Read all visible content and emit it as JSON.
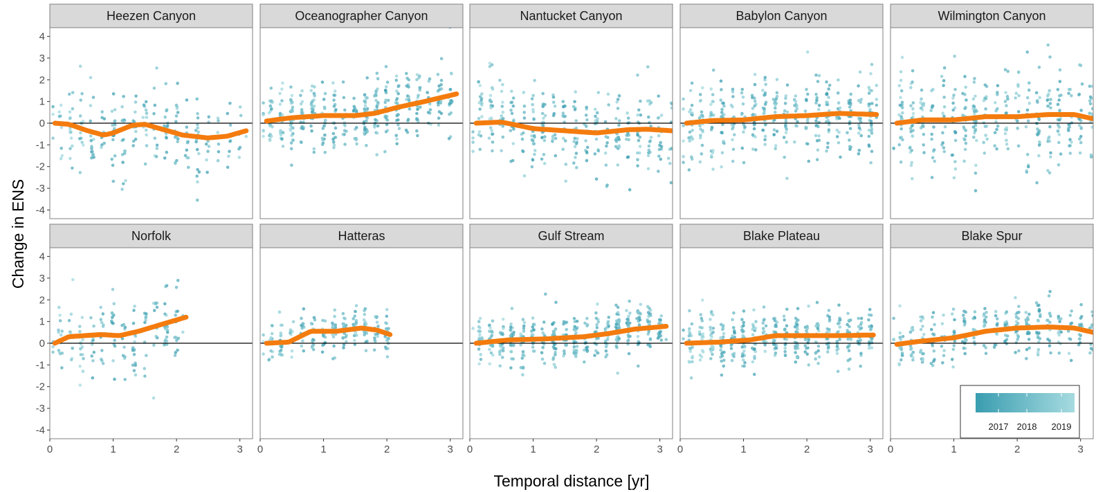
{
  "chart_data": {
    "type": "scatter",
    "layout": "faceted-2x5",
    "xlabel": "Temporal distance [yr]",
    "ylabel": "Change in ENS",
    "xlim": [
      0,
      3.2
    ],
    "ylim": [
      -4.4,
      4.4
    ],
    "x_ticks": [
      0,
      1,
      2,
      3
    ],
    "y_ticks": [
      -4,
      -3,
      -2,
      -1,
      0,
      1,
      2,
      3,
      4
    ],
    "y_tick_labels": [
      "-4",
      "-3",
      "-2",
      "-1",
      "0",
      "1",
      "2",
      "3",
      "4"
    ],
    "reference_line_y": 0,
    "grid": false,
    "colors": {
      "point_dark": "#3a9db0",
      "point_light": "#a6dbe0",
      "smooth_line": "#f47b0e",
      "strip_fill": "#d9d9d9",
      "panel_border": "#7f7f7f"
    },
    "legend": {
      "type": "colorbar",
      "position": "bottom-right",
      "labels": [
        "2017",
        "2018",
        "2019"
      ]
    },
    "facets": [
      {
        "name": "Heezen Canyon",
        "x_max": 3.1,
        "spread": 1.15,
        "n": 230,
        "smooth": [
          [
            0.08,
            0.0
          ],
          [
            0.3,
            -0.05
          ],
          [
            0.6,
            -0.35
          ],
          [
            0.85,
            -0.55
          ],
          [
            1.0,
            -0.45
          ],
          [
            1.3,
            -0.1
          ],
          [
            1.5,
            -0.05
          ],
          [
            1.8,
            -0.3
          ],
          [
            2.1,
            -0.55
          ],
          [
            2.5,
            -0.68
          ],
          [
            2.8,
            -0.6
          ],
          [
            3.1,
            -0.35
          ]
        ]
      },
      {
        "name": "Oceanographer Canyon",
        "x_max": 3.1,
        "spread": 0.95,
        "n": 400,
        "smooth": [
          [
            0.1,
            0.1
          ],
          [
            0.5,
            0.25
          ],
          [
            1.0,
            0.35
          ],
          [
            1.5,
            0.35
          ],
          [
            1.8,
            0.45
          ],
          [
            2.2,
            0.75
          ],
          [
            2.6,
            1.0
          ],
          [
            3.1,
            1.35
          ]
        ]
      },
      {
        "name": "Nantucket Canyon",
        "x_max": 3.2,
        "spread": 1.2,
        "n": 330,
        "smooth": [
          [
            0.1,
            0.0
          ],
          [
            0.5,
            0.05
          ],
          [
            1.0,
            -0.25
          ],
          [
            1.5,
            -0.35
          ],
          [
            2.0,
            -0.45
          ],
          [
            2.5,
            -0.3
          ],
          [
            2.8,
            -0.28
          ],
          [
            3.2,
            -0.35
          ]
        ]
      },
      {
        "name": "Babylon Canyon",
        "x_max": 3.1,
        "spread": 1.1,
        "n": 380,
        "smooth": [
          [
            0.1,
            0.0
          ],
          [
            0.5,
            0.12
          ],
          [
            1.0,
            0.15
          ],
          [
            1.5,
            0.3
          ],
          [
            2.0,
            0.35
          ],
          [
            2.5,
            0.45
          ],
          [
            3.1,
            0.4
          ]
        ]
      },
      {
        "name": "Wilmington Canyon",
        "x_max": 3.2,
        "spread": 1.35,
        "n": 360,
        "smooth": [
          [
            0.1,
            0.0
          ],
          [
            0.5,
            0.15
          ],
          [
            1.0,
            0.15
          ],
          [
            1.5,
            0.3
          ],
          [
            2.0,
            0.3
          ],
          [
            2.5,
            0.4
          ],
          [
            2.9,
            0.4
          ],
          [
            3.2,
            0.2
          ]
        ]
      },
      {
        "name": "Norfolk",
        "x_max": 2.1,
        "spread": 1.15,
        "n": 170,
        "smooth": [
          [
            0.08,
            0.0
          ],
          [
            0.3,
            0.3
          ],
          [
            0.8,
            0.4
          ],
          [
            1.1,
            0.35
          ],
          [
            1.4,
            0.55
          ],
          [
            1.8,
            0.9
          ],
          [
            2.15,
            1.2
          ]
        ]
      },
      {
        "name": "Hatteras",
        "x_max": 2.05,
        "spread": 0.6,
        "n": 210,
        "smooth": [
          [
            0.1,
            0.0
          ],
          [
            0.45,
            0.05
          ],
          [
            0.8,
            0.55
          ],
          [
            1.2,
            0.55
          ],
          [
            1.6,
            0.7
          ],
          [
            1.85,
            0.6
          ],
          [
            2.05,
            0.4
          ]
        ]
      },
      {
        "name": "Gulf Stream",
        "x_max": 3.1,
        "spread": 0.65,
        "n": 430,
        "smooth": [
          [
            0.1,
            0.0
          ],
          [
            0.6,
            0.15
          ],
          [
            1.2,
            0.2
          ],
          [
            1.8,
            0.3
          ],
          [
            2.2,
            0.45
          ],
          [
            2.6,
            0.65
          ],
          [
            3.1,
            0.78
          ]
        ]
      },
      {
        "name": "Blake Plateau",
        "x_max": 3.05,
        "spread": 0.65,
        "n": 400,
        "smooth": [
          [
            0.1,
            0.0
          ],
          [
            0.6,
            0.05
          ],
          [
            1.1,
            0.15
          ],
          [
            1.5,
            0.35
          ],
          [
            2.0,
            0.35
          ],
          [
            2.5,
            0.35
          ],
          [
            3.05,
            0.38
          ]
        ]
      },
      {
        "name": "Blake Spur",
        "x_max": 3.2,
        "spread": 0.75,
        "n": 300,
        "smooth": [
          [
            0.1,
            -0.05
          ],
          [
            0.5,
            0.1
          ],
          [
            1.0,
            0.25
          ],
          [
            1.5,
            0.55
          ],
          [
            2.0,
            0.7
          ],
          [
            2.5,
            0.75
          ],
          [
            2.9,
            0.7
          ],
          [
            3.2,
            0.5
          ]
        ]
      }
    ]
  }
}
